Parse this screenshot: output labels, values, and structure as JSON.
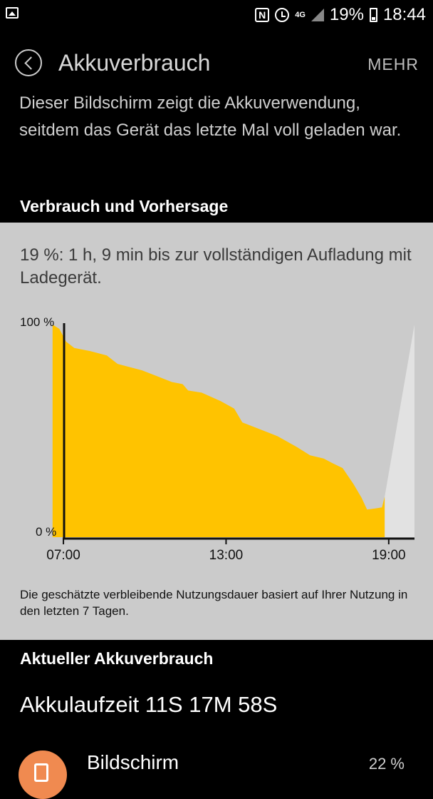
{
  "status_bar": {
    "network": "4G",
    "battery": "19%",
    "time": "18:44",
    "icons": [
      "gallery-icon",
      "nfc-icon",
      "alarm-icon",
      "signal-icon",
      "battery-charging-icon"
    ]
  },
  "app_bar": {
    "title": "Akkuverbrauch",
    "more_label": "MEHR"
  },
  "description": "Dieser Bildschirm zeigt die Akkuverwendung, seitdem das Gerät das letzte Mal voll geladen war.",
  "usage_section": {
    "heading": "Verbrauch und Vorhersage",
    "estimate": "19 %: 1 h, 9 min bis zur vollständigen Aufladung mit Ladegerät.",
    "note": "Die geschätzte verbleibende Nutzungsdauer basiert auf Ihrer Nutzung in den letzten 7 Tagen."
  },
  "colors": {
    "usage_fill": "#ffc300",
    "forecast_fill": "#e2e2e2",
    "panel_bg": "#cbcbcb",
    "icon_orange": "#f08a50"
  },
  "chart_data": {
    "type": "area",
    "ylabel_top": "100 %",
    "ylabel_bottom": "0 %",
    "x_ticks": [
      "07:00",
      "13:00",
      "19:00"
    ],
    "x_tick_hours": [
      7,
      13,
      19
    ],
    "xlim": [
      6.5,
      19.95
    ],
    "ylim": [
      0,
      100
    ],
    "series": [
      {
        "points": [
          [
            6.6,
            100
          ],
          [
            6.85,
            98
          ],
          [
            7.1,
            92
          ],
          [
            7.4,
            89
          ],
          [
            8.0,
            87.5
          ],
          [
            8.6,
            85.5
          ],
          [
            9.0,
            81.5
          ],
          [
            9.9,
            78.5
          ],
          [
            10.5,
            75.5
          ],
          [
            11.0,
            73
          ],
          [
            11.4,
            72
          ],
          [
            11.6,
            69
          ],
          [
            12.1,
            68
          ],
          [
            12.8,
            64
          ],
          [
            13.3,
            60.5
          ],
          [
            13.6,
            54
          ],
          [
            14.2,
            51
          ],
          [
            14.9,
            47.5
          ],
          [
            15.6,
            42.5
          ],
          [
            16.1,
            38.5
          ],
          [
            16.6,
            37
          ],
          [
            16.9,
            35
          ],
          [
            17.3,
            32.5
          ],
          [
            17.7,
            25
          ],
          [
            18.0,
            18.5
          ],
          [
            18.2,
            13
          ],
          [
            18.5,
            13.5
          ],
          [
            18.75,
            14
          ],
          [
            18.85,
            19
          ]
        ]
      },
      {
        "points": [
          [
            18.85,
            19
          ],
          [
            19.95,
            100
          ],
          [
            19.95,
            0
          ],
          [
            18.85,
            0
          ]
        ]
      }
    ]
  },
  "current_section": {
    "heading": "Aktueller Akkuverbrauch",
    "runtime": "Akkulaufzeit 11S 17M 58S"
  },
  "usage_list": [
    {
      "label": "Bildschirm",
      "percent": "22 %",
      "icon": "screen-icon"
    }
  ]
}
